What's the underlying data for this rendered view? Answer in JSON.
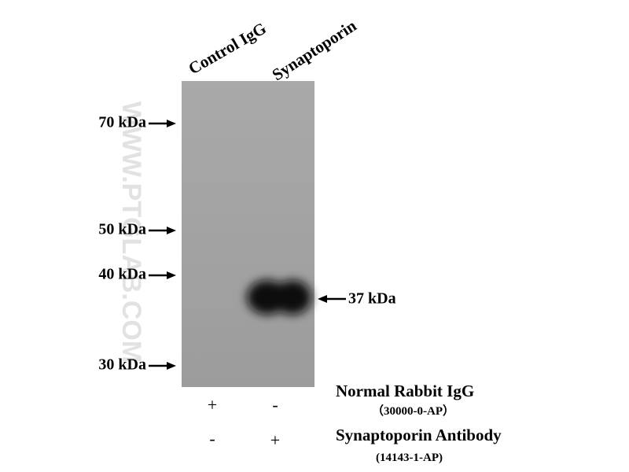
{
  "watermark": "WWW.PTGLAB.COM",
  "lanes": [
    "Control IgG",
    "Synaptoporin"
  ],
  "markers": [
    "70 kDa",
    "50 kDa",
    "40 kDa",
    "30 kDa"
  ],
  "band_label": "37 kDa",
  "conditions": [
    {
      "name": "Normal Rabbit IgG",
      "catalog": "（30000-0-AP）",
      "signs": [
        "+",
        "-"
      ]
    },
    {
      "name": "Synaptoporin Antibody",
      "catalog": "(14143-1-AP)",
      "signs": [
        "-",
        "+"
      ]
    }
  ]
}
